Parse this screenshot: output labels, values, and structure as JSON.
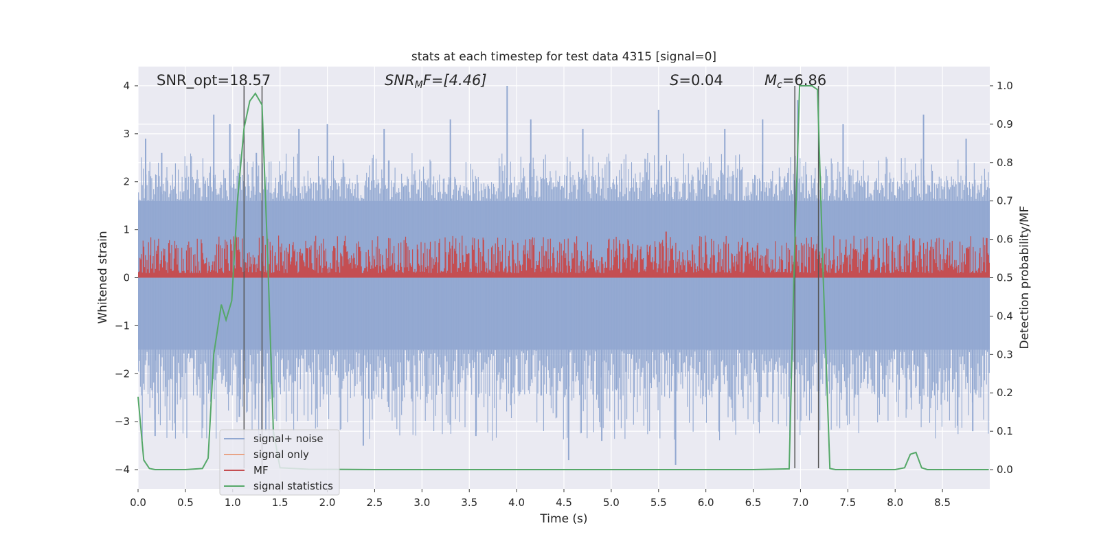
{
  "chart_data": {
    "type": "line",
    "title": "stats at each timestep for test data 4315 [signal=0]",
    "xlabel": "Time (s)",
    "ylabel_left": "Whitened strain",
    "ylabel_right": "Detection probability/MF",
    "xlim": [
      0.0,
      9.0
    ],
    "ylim_left": [
      -4.4,
      4.4
    ],
    "ylim_right": [
      -0.05,
      1.05
    ],
    "x_ticks": [
      0.0,
      0.5,
      1.0,
      1.5,
      2.0,
      2.5,
      3.0,
      3.5,
      4.0,
      4.5,
      5.0,
      5.5,
      6.0,
      6.5,
      7.0,
      7.5,
      8.0,
      8.5
    ],
    "x_tick_labels": [
      "0.0",
      "0.5",
      "1.0",
      "1.5",
      "2.0",
      "2.5",
      "3.0",
      "3.5",
      "4.0",
      "4.5",
      "5.0",
      "5.5",
      "6.0",
      "6.5",
      "7.0",
      "7.5",
      "8.0",
      "8.5"
    ],
    "y_left_ticks": [
      4,
      3,
      2,
      1,
      0,
      -1,
      -2,
      -3,
      -4
    ],
    "y_left_tick_labels": [
      "4",
      "3",
      "2",
      "1",
      "0",
      "−1",
      "−2",
      "−3",
      "−4"
    ],
    "y_right_ticks": [
      1.0,
      0.9,
      0.8,
      0.7,
      0.6,
      0.5,
      0.4,
      0.3,
      0.2,
      0.1,
      0.0
    ],
    "y_right_tick_labels": [
      "1.0",
      "0.9",
      "0.8",
      "0.7",
      "0.6",
      "0.5",
      "0.4",
      "0.3",
      "0.2",
      "0.1",
      "0.0"
    ],
    "grid": true,
    "legend_position": "lower-left",
    "annotations": {
      "snr_opt": "SNR_opt=18.57",
      "snr_mf_main": "SNR",
      "snr_mf_sub": "M",
      "snr_mf_rest": "F=[4.46]",
      "s_main": "S",
      "s_rest": "=0.04",
      "mc_main": "M",
      "mc_sub": "c",
      "mc_rest": "=6.86"
    },
    "vertical_markers_x": [
      1.12,
      1.31,
      6.94,
      7.19
    ],
    "series": [
      {
        "name": "signal+ noise",
        "color": "#92a8d1",
        "axis": "left",
        "envelope": {
          "core_upper": 1.6,
          "core_lower": -1.5,
          "typical_peak": 2.6,
          "spikes": [
            {
              "x": 0.08,
              "y": 2.9
            },
            {
              "x": 0.25,
              "y": 2.6
            },
            {
              "x": 0.18,
              "y": -3.3
            },
            {
              "x": 0.8,
              "y": 3.4
            },
            {
              "x": 0.97,
              "y": 3.2
            },
            {
              "x": 1.07,
              "y": -2.9
            },
            {
              "x": 1.25,
              "y": 2.6
            },
            {
              "x": 1.35,
              "y": -3.2
            },
            {
              "x": 1.7,
              "y": 3.1
            },
            {
              "x": 2.0,
              "y": 3.2
            },
            {
              "x": 2.38,
              "y": -3.5
            },
            {
              "x": 2.6,
              "y": 3.1
            },
            {
              "x": 3.3,
              "y": 3.3
            },
            {
              "x": 3.57,
              "y": -3.3
            },
            {
              "x": 3.9,
              "y": 4.0
            },
            {
              "x": 4.15,
              "y": 3.3
            },
            {
              "x": 4.55,
              "y": -3.8
            },
            {
              "x": 4.7,
              "y": 3.1
            },
            {
              "x": 4.9,
              "y": -3.4
            },
            {
              "x": 5.5,
              "y": 3.5
            },
            {
              "x": 5.68,
              "y": -3.9
            },
            {
              "x": 6.2,
              "y": 3.1
            },
            {
              "x": 6.6,
              "y": 3.3
            },
            {
              "x": 6.97,
              "y": 3.7
            },
            {
              "x": 7.45,
              "y": 3.2
            },
            {
              "x": 8.3,
              "y": 3.4
            },
            {
              "x": 8.75,
              "y": 2.9
            },
            {
              "x": 8.82,
              "y": -3.2
            }
          ]
        }
      },
      {
        "name": "signal only",
        "color": "#e8a487",
        "axis": "left",
        "values": []
      },
      {
        "name": "MF",
        "color": "#c44e52",
        "axis": "right",
        "band": {
          "base": 0.5,
          "typical_peak": 0.58,
          "max_peak": 0.61
        },
        "spikes": [
          {
            "x": 5.58,
            "y": 0.62
          }
        ]
      },
      {
        "name": "signal statistics",
        "color": "#55a868",
        "axis": "right",
        "x": [
          0.0,
          0.06,
          0.12,
          0.18,
          0.5,
          0.68,
          0.74,
          0.8,
          0.88,
          0.93,
          0.99,
          1.05,
          1.12,
          1.18,
          1.24,
          1.31,
          1.37,
          1.43,
          1.5,
          1.8,
          2.5,
          6.5,
          6.88,
          6.93,
          6.99,
          7.05,
          7.12,
          7.18,
          7.24,
          7.31,
          7.37,
          8.0,
          8.1,
          8.16,
          8.22,
          8.28,
          8.34,
          8.4,
          8.99
        ],
        "y": [
          0.19,
          0.025,
          0.003,
          0.0,
          0.0,
          0.003,
          0.03,
          0.3,
          0.43,
          0.39,
          0.44,
          0.7,
          0.89,
          0.96,
          0.98,
          0.95,
          0.55,
          0.1,
          0.005,
          0.001,
          0.0,
          0.0,
          0.002,
          0.5,
          1.0,
          1.0,
          1.0,
          0.99,
          0.5,
          0.003,
          0.0,
          0.0,
          0.005,
          0.04,
          0.045,
          0.005,
          0.0,
          0.0,
          0.0
        ]
      }
    ]
  }
}
